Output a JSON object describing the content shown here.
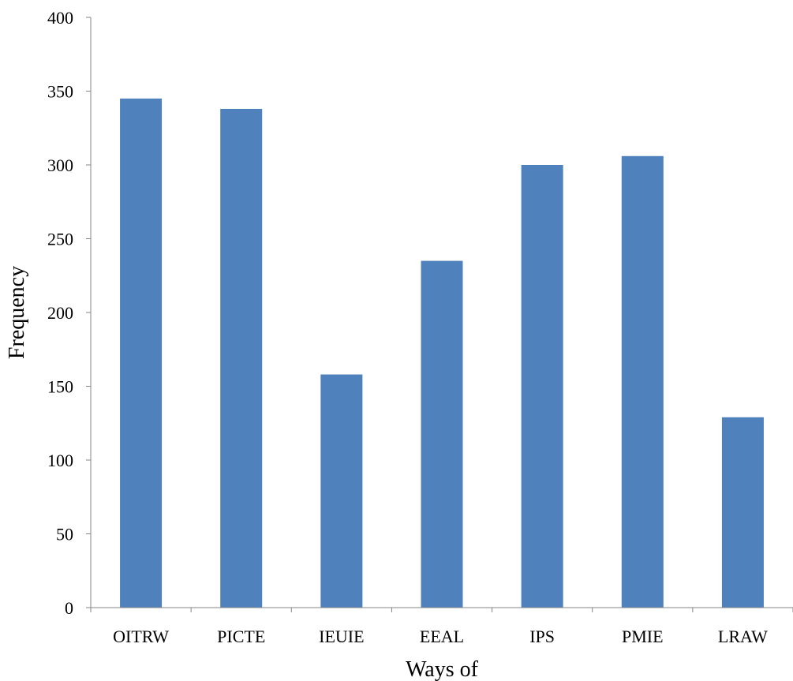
{
  "chart_data": {
    "type": "bar",
    "title": "",
    "xlabel": "Ways of",
    "ylabel": "Frequency",
    "categories": [
      "OITRW",
      "PICTE",
      "IEUIE",
      "EEAL",
      "IPS",
      "PMIE",
      "LRAW"
    ],
    "values": [
      345,
      338,
      158,
      235,
      300,
      306,
      129
    ],
    "ylim": [
      0,
      400
    ],
    "yticks": [
      0,
      50,
      100,
      150,
      200,
      250,
      300,
      350,
      400
    ],
    "grid": false,
    "legend": "none",
    "bar_color": "#4f81bd",
    "axis_color": "#868686"
  }
}
